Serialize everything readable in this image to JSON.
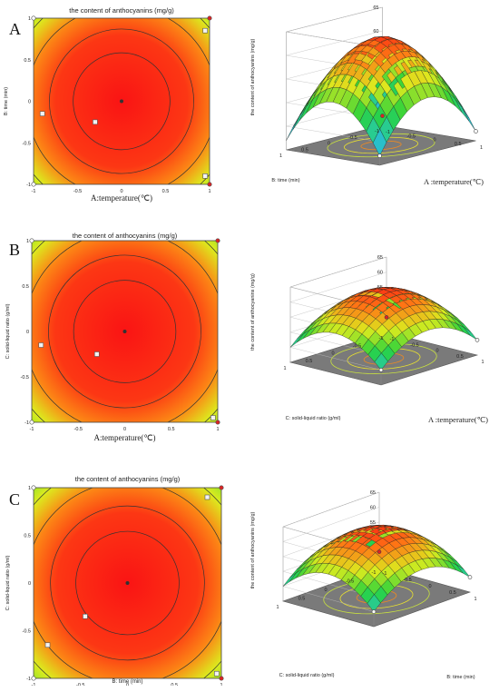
{
  "panels": [
    {
      "letter": "A",
      "contour": {
        "title": "the content of anthocyanins (mg/g)",
        "xlabel": "A:temperature(℃)",
        "ylabel": "B: time (min)",
        "xticks": [
          "-1",
          "-0.5",
          "0",
          "0.5",
          "1"
        ],
        "yticks": [
          "-1",
          "-0.5",
          "0",
          "0.5",
          "1"
        ]
      },
      "surface": {
        "zlabel": "the content of anthocyanins (mg/g)",
        "xlabel": "A :temperature(℃)",
        "ylabel": "B: time (min)",
        "zticks": [
          "45",
          "50",
          "55",
          "60",
          "65"
        ],
        "xticks": [
          "-1",
          "-0.5",
          "0",
          "0.5",
          "1"
        ],
        "yticks": [
          "1",
          "0.5",
          "0",
          "-0.5",
          "-1"
        ]
      }
    },
    {
      "letter": "B",
      "contour": {
        "title": "the content of anthocyanins (mg/g)",
        "xlabel": "A:temperature(℃)",
        "ylabel": "C: solid-liquid ratio (g/ml)",
        "xticks": [
          "-1",
          "-0.5",
          "0",
          "0.5",
          "1"
        ],
        "yticks": [
          "-1",
          "-0.5",
          "0",
          "0.5",
          "1"
        ]
      },
      "surface": {
        "zlabel": "the content of anthocyanins (mg/g)",
        "xlabel": "A :temperature(℃)",
        "ylabel": "C: solid-liquid ratio (g/ml)",
        "zticks": [
          "45",
          "50",
          "55",
          "60",
          "65"
        ],
        "xticks": [
          "-1",
          "-0.5",
          "0",
          "0.5",
          "1"
        ],
        "yticks": [
          "1",
          "0.5",
          "0",
          "-0.5",
          "-1"
        ]
      }
    },
    {
      "letter": "C",
      "contour": {
        "title": "the content of anthocyanins (mg/g)",
        "xlabel": "B: time (min)",
        "ylabel": "C: solid-liquid ratio (g/ml)",
        "xticks": [
          "-1",
          "-0.5",
          "0",
          "0.5",
          "1"
        ],
        "yticks": [
          "-1",
          "-0.5",
          "0",
          "0.5",
          "1"
        ]
      },
      "surface": {
        "zlabel": "the content of anthocyanins (mg/g)",
        "xlabel": "B: time (min)",
        "ylabel": "C: solid-liquid ratio (g/ml)",
        "zticks": [
          "45",
          "50",
          "55",
          "60",
          "65"
        ],
        "xticks": [
          "-1",
          "-0.5",
          "0",
          "0.5",
          "1"
        ],
        "yticks": [
          "1",
          "0.5",
          "0",
          "-0.5",
          "-1"
        ]
      }
    }
  ],
  "chart_data": [
    {
      "type": "heatmap",
      "title": "the content of anthocyanins (mg/g)",
      "xlabel": "A:temperature(℃)",
      "ylabel": "B: time (min)",
      "xlim": [
        -1,
        1
      ],
      "ylim": [
        -1,
        1
      ],
      "optimum": {
        "x": 0.0,
        "y": 0.0
      },
      "design_points": [
        [
          -1,
          1
        ],
        [
          1,
          1
        ],
        [
          -1,
          -1
        ],
        [
          1,
          -1
        ],
        [
          -0.9,
          -0.15
        ],
        [
          -0.3,
          -0.25
        ],
        [
          0.95,
          0.85
        ],
        [
          0.95,
          -0.9
        ],
        [
          0,
          0
        ]
      ],
      "colormap": "blue-green-yellow-red"
    },
    {
      "type": "surface",
      "zlabel": "the content of anthocyanins (mg/g)",
      "xlabel": "A :temperature(℃)",
      "ylabel": "B: time (min)",
      "xlim": [
        -1,
        1
      ],
      "ylim": [
        -1,
        1
      ],
      "zlim": [
        40,
        65
      ],
      "peak": 63,
      "corner_min": 42
    },
    {
      "type": "heatmap",
      "title": "the content of anthocyanins (mg/g)",
      "xlabel": "A:temperature(℃)",
      "ylabel": "C: solid-liquid ratio (g/ml)",
      "xlim": [
        -1,
        1
      ],
      "ylim": [
        -1,
        1
      ],
      "optimum": {
        "x": 0.0,
        "y": 0.0
      },
      "design_points": [
        [
          -1,
          1
        ],
        [
          1,
          1
        ],
        [
          -1,
          -1
        ],
        [
          1,
          -1
        ],
        [
          -0.9,
          -0.15
        ],
        [
          -0.3,
          -0.25
        ],
        [
          0.95,
          -0.95
        ],
        [
          0,
          0
        ]
      ],
      "colormap": "blue-green-yellow-red"
    },
    {
      "type": "surface",
      "zlabel": "the content of anthocyanins (mg/g)",
      "xlabel": "A :temperature(℃)",
      "ylabel": "C: solid-liquid ratio (g/ml)",
      "xlim": [
        -1,
        1
      ],
      "ylim": [
        -1,
        1
      ],
      "zlim": [
        40,
        65
      ],
      "peak": 63,
      "corner_min": 45
    },
    {
      "type": "heatmap",
      "title": "the content of anthocyanins (mg/g)",
      "xlabel": "B: time (min)",
      "ylabel": "C: solid-liquid ratio (g/ml)",
      "xlim": [
        -1,
        1
      ],
      "ylim": [
        -1,
        1
      ],
      "optimum": {
        "x": 0.0,
        "y": 0.0
      },
      "design_points": [
        [
          -1,
          1
        ],
        [
          1,
          1
        ],
        [
          -1,
          -1
        ],
        [
          1,
          -1
        ],
        [
          -0.85,
          -0.65
        ],
        [
          -0.45,
          -0.35
        ],
        [
          0.85,
          0.9
        ],
        [
          0.95,
          -0.95
        ],
        [
          0,
          0
        ]
      ],
      "colormap": "blue-green-yellow-red"
    },
    {
      "type": "surface",
      "zlabel": "the content of anthocyanins (mg/g)",
      "xlabel": "B: time (min)",
      "ylabel": "C: solid-liquid ratio (g/ml)",
      "xlim": [
        -1,
        1
      ],
      "ylim": [
        -1,
        1
      ],
      "zlim": [
        40,
        65
      ],
      "peak": 63,
      "corner_min": 45
    }
  ]
}
